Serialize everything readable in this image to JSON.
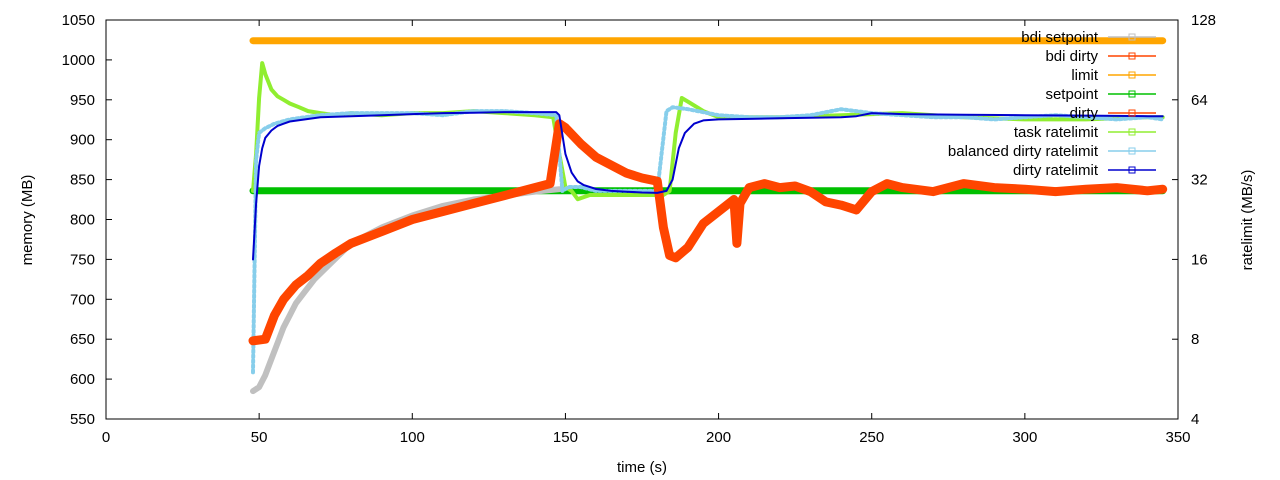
{
  "chart_data": {
    "type": "line",
    "xlabel": "time (s)",
    "ylabel": "memory (MB)",
    "y2label": "ratelimit (MB/s)",
    "xlim": [
      0,
      350
    ],
    "ylim": [
      550,
      1050
    ],
    "y2lim": [
      4,
      128
    ],
    "y2scale": "log2",
    "x_ticks": [
      0,
      50,
      100,
      150,
      200,
      250,
      300,
      350
    ],
    "y_ticks": [
      550,
      600,
      650,
      700,
      750,
      800,
      850,
      900,
      950,
      1000,
      1050
    ],
    "y2_ticks": [
      4,
      8,
      16,
      32,
      64,
      128
    ],
    "legend_position": "top-right",
    "series": [
      {
        "name": "bdi setpoint",
        "axis": "y",
        "color": "#c0c0c0",
        "x": [
          48,
          50,
          52,
          54,
          56,
          58,
          60,
          62,
          65,
          68,
          72,
          76,
          80,
          90,
          100,
          110,
          120,
          130,
          140,
          148
        ],
        "y": [
          585,
          590,
          605,
          625,
          645,
          665,
          680,
          695,
          710,
          725,
          740,
          755,
          770,
          790,
          805,
          817,
          825,
          830,
          835,
          838
        ]
      },
      {
        "name": "bdi dirty",
        "axis": "y",
        "color": "#ff4500",
        "x": [
          48,
          52,
          55,
          58,
          62,
          66,
          70,
          75,
          80,
          90,
          100,
          110,
          120,
          130,
          140,
          145,
          148,
          150,
          155,
          160,
          165,
          170,
          175,
          180,
          182,
          184,
          186,
          190,
          195,
          200,
          205,
          206,
          207,
          210,
          215,
          220,
          225,
          230,
          235,
          240,
          245,
          250,
          255,
          260,
          270,
          280,
          290,
          300,
          310,
          320,
          330,
          340,
          345
        ],
        "y": [
          648,
          650,
          680,
          700,
          718,
          730,
          745,
          758,
          770,
          785,
          800,
          810,
          820,
          830,
          840,
          845,
          920,
          915,
          895,
          878,
          868,
          858,
          852,
          848,
          790,
          755,
          752,
          765,
          795,
          810,
          825,
          770,
          820,
          840,
          845,
          840,
          842,
          835,
          822,
          818,
          812,
          835,
          845,
          840,
          835,
          845,
          840,
          838,
          835,
          838,
          840,
          836,
          838
        ]
      },
      {
        "name": "limit",
        "axis": "y",
        "color": "#ffa500",
        "x": [
          48,
          345
        ],
        "y": [
          1024,
          1024
        ]
      },
      {
        "name": "setpoint",
        "axis": "y",
        "color": "#00c000",
        "x": [
          48,
          345
        ],
        "y": [
          836,
          836
        ]
      },
      {
        "name": "dirty",
        "axis": "y",
        "color": "#ff4500",
        "x": [
          48,
          52,
          55,
          58,
          62,
          66,
          70,
          75,
          80,
          90,
          100,
          110,
          120,
          130,
          140,
          145,
          148,
          150,
          155,
          160,
          165,
          170,
          175,
          180,
          182,
          184,
          186,
          190,
          195,
          200,
          205,
          206,
          207,
          210,
          215,
          220,
          225,
          230,
          235,
          240,
          245,
          250,
          255,
          260,
          270,
          280,
          290,
          300,
          310,
          320,
          330,
          340,
          345
        ],
        "y": [
          648,
          650,
          680,
          700,
          718,
          730,
          745,
          758,
          770,
          785,
          800,
          810,
          820,
          830,
          840,
          845,
          920,
          915,
          895,
          878,
          868,
          858,
          852,
          848,
          790,
          755,
          752,
          765,
          795,
          810,
          825,
          770,
          820,
          840,
          845,
          840,
          842,
          835,
          822,
          818,
          812,
          835,
          845,
          840,
          835,
          845,
          840,
          838,
          835,
          838,
          840,
          836,
          838
        ]
      },
      {
        "name": "task ratelimit",
        "axis": "y2",
        "color": "#90ee30",
        "x": [
          48,
          49,
          50,
          51,
          52,
          54,
          56,
          58,
          60,
          63,
          66,
          70,
          75,
          80,
          90,
          100,
          110,
          120,
          130,
          140,
          146,
          148,
          150,
          152,
          154,
          158,
          165,
          175,
          182,
          184,
          186,
          188,
          190,
          195,
          200,
          210,
          220,
          240,
          260,
          280,
          300,
          320,
          340,
          345
        ],
        "y": [
          29,
          40,
          65,
          88,
          80,
          70,
          66,
          64,
          62,
          60,
          58,
          57,
          56,
          57,
          56,
          57,
          57,
          58,
          57,
          56,
          55,
          40,
          30,
          29,
          27,
          28,
          28,
          28,
          28,
          29,
          48,
          65,
          63,
          58,
          55,
          55,
          55,
          56,
          57,
          55,
          54,
          54,
          55,
          55
        ]
      },
      {
        "name": "balanced dirty ratelimit",
        "axis": "y2",
        "color": "#87ceeb",
        "x": [
          48,
          49,
          50,
          52,
          55,
          60,
          65,
          70,
          80,
          90,
          100,
          110,
          120,
          130,
          140,
          147,
          149,
          151,
          155,
          160,
          170,
          180,
          183,
          185,
          190,
          200,
          210,
          220,
          230,
          240,
          250,
          260,
          270,
          280,
          290,
          300,
          310,
          320,
          330,
          340,
          345
        ],
        "y": [
          6,
          38,
          48,
          50,
          52,
          54,
          55,
          56,
          57,
          57,
          57,
          56,
          58,
          58,
          57,
          56,
          29,
          30,
          30,
          29,
          29,
          29,
          58,
          60,
          59,
          56,
          55,
          55,
          56,
          59,
          57,
          56,
          55,
          55,
          54,
          55,
          56,
          55,
          54,
          55,
          54
        ]
      },
      {
        "name": "dirty ratelimit",
        "axis": "y2",
        "color": "#0000cd",
        "x": [
          48,
          49,
          50,
          51,
          52,
          54,
          56,
          58,
          60,
          65,
          70,
          80,
          90,
          100,
          110,
          120,
          130,
          140,
          145,
          147,
          148,
          150,
          152,
          154,
          156,
          160,
          165,
          170,
          175,
          180,
          183,
          185,
          187,
          189,
          192,
          195,
          200,
          210,
          220,
          230,
          240,
          245,
          250,
          260,
          280,
          300,
          320,
          340,
          345
        ],
        "y": [
          16,
          26,
          36,
          42,
          46,
          49,
          51,
          52,
          53,
          54,
          55,
          55.5,
          56,
          56.5,
          57,
          57.2,
          57.5,
          57.5,
          57.5,
          57.5,
          56,
          40,
          34,
          31.5,
          30.5,
          29.5,
          29,
          28.8,
          28.6,
          28.5,
          29,
          32,
          42,
          48,
          52,
          53.5,
          54,
          54.2,
          54.5,
          54.8,
          55,
          55.5,
          57,
          56.5,
          56.2,
          56,
          55.8,
          55.5,
          55.5
        ]
      }
    ]
  }
}
